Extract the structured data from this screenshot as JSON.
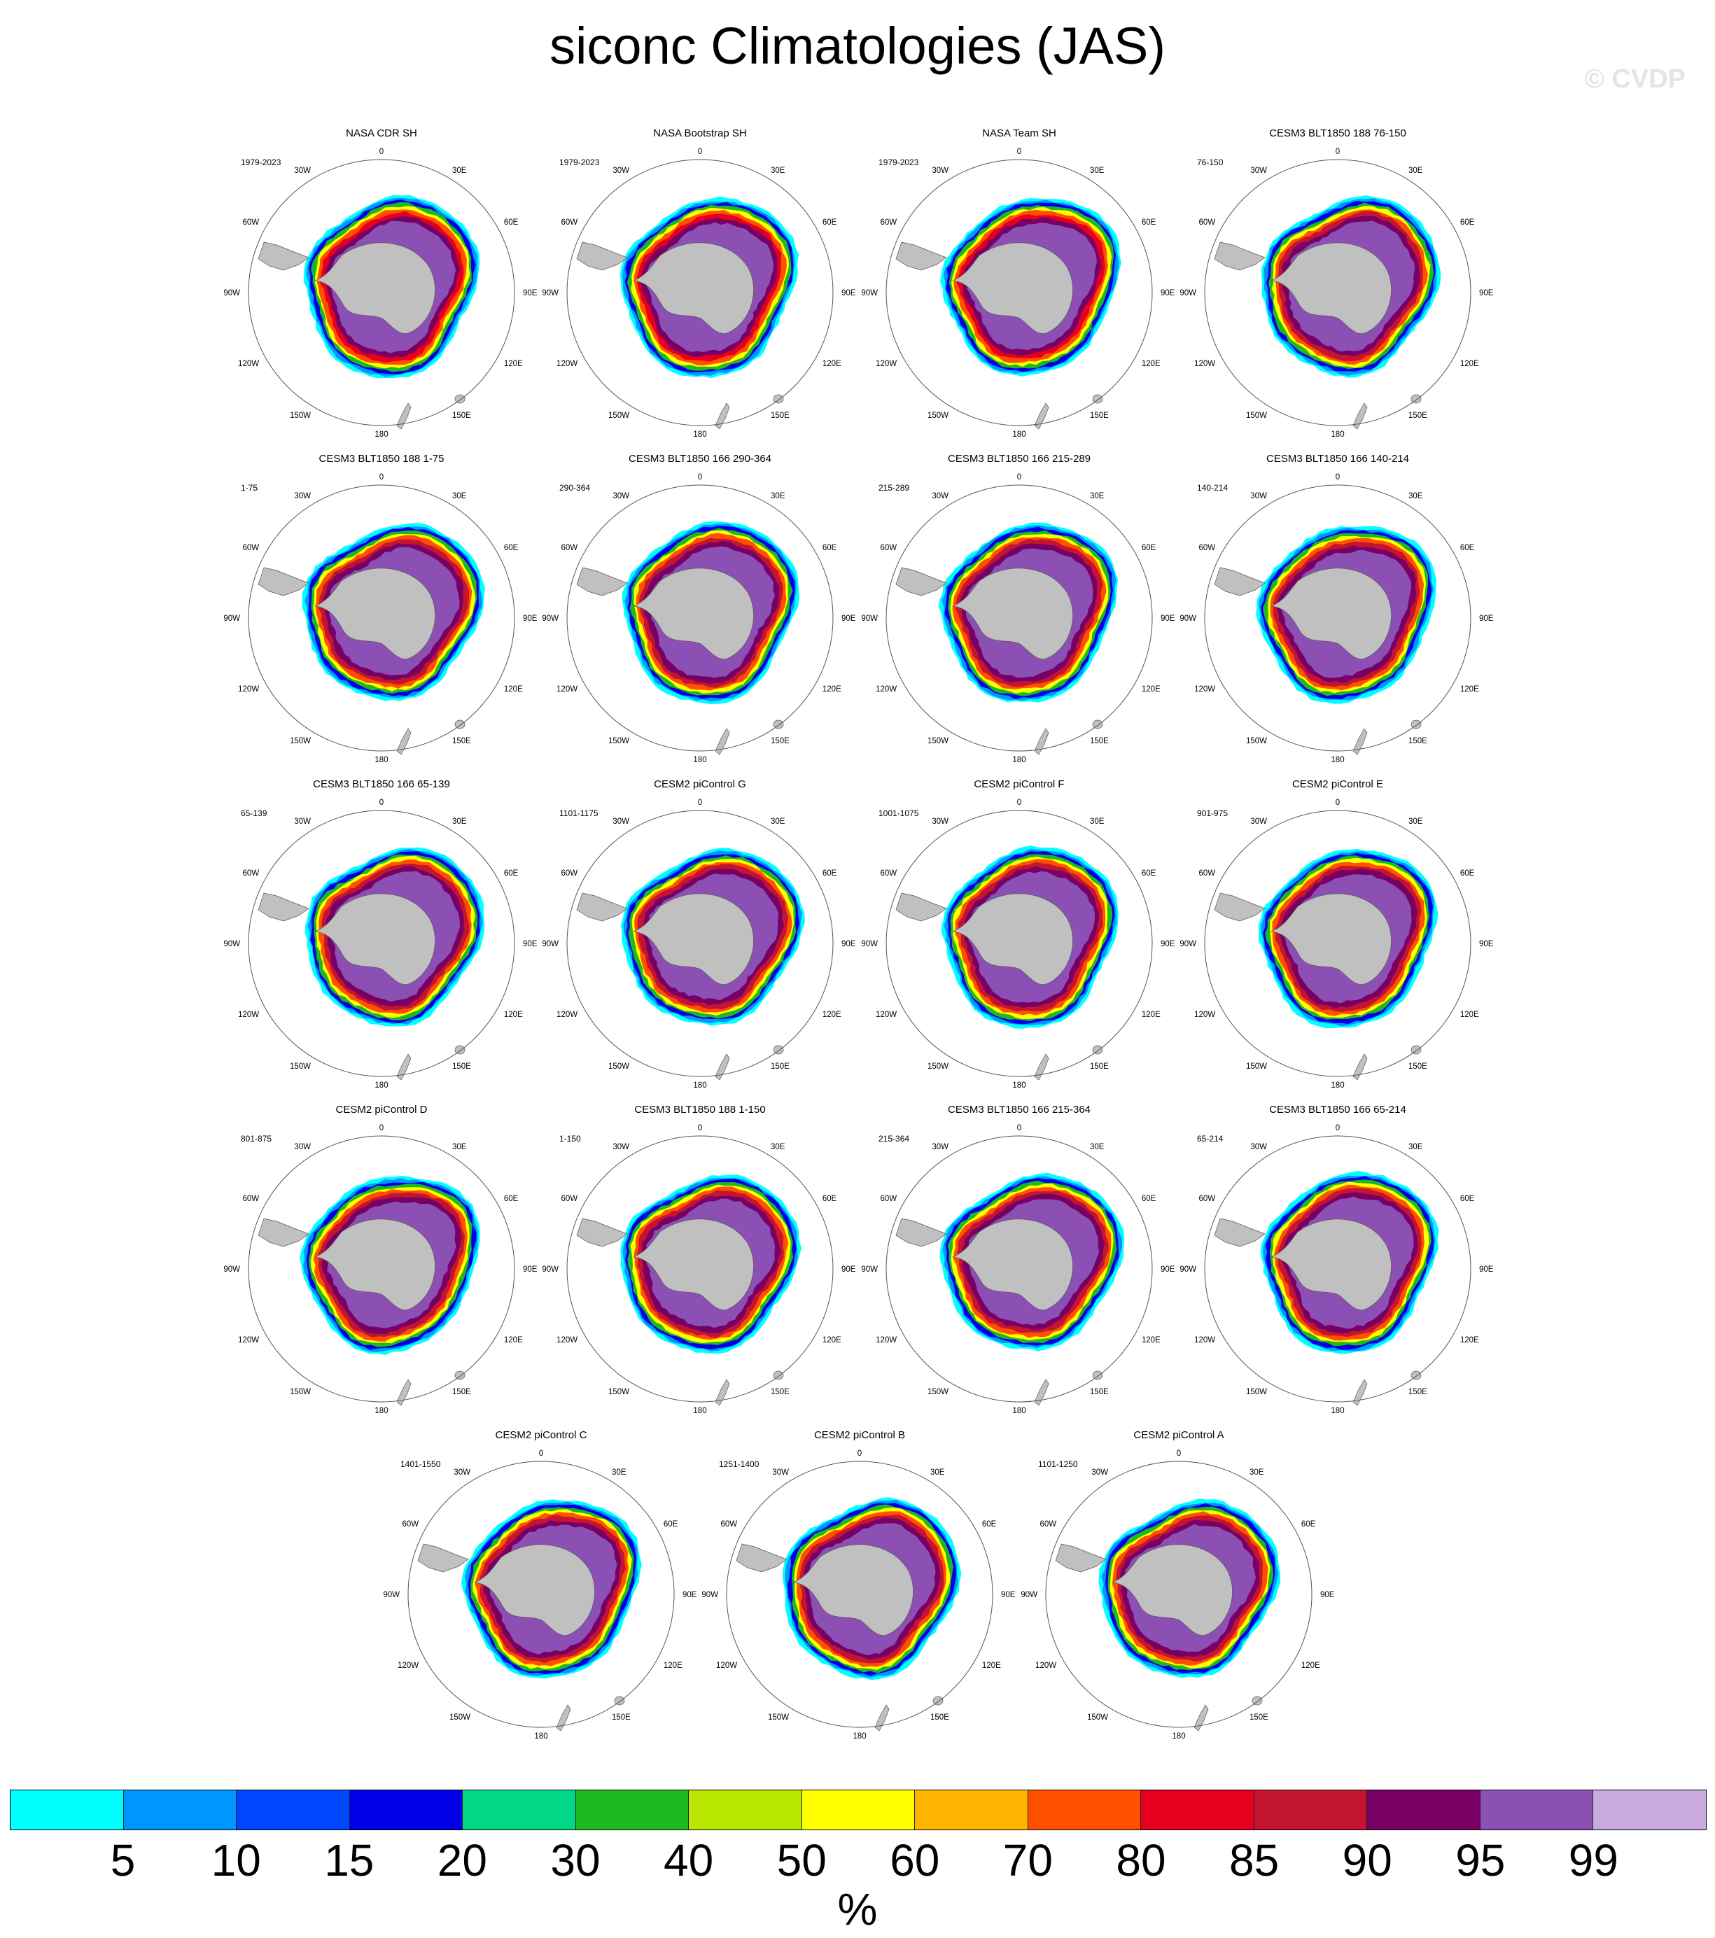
{
  "title": "siconc Climatologies (JAS)",
  "watermark": "© CVDP",
  "lon_labels": [
    "0",
    "30E",
    "60E",
    "90E",
    "120E",
    "150E",
    "180",
    "150W",
    "120W",
    "90W",
    "60W",
    "30W"
  ],
  "panels": [
    {
      "title": "NASA CDR SH",
      "period": "1979-2023"
    },
    {
      "title": "NASA Bootstrap SH",
      "period": "1979-2023"
    },
    {
      "title": "NASA Team SH",
      "period": "1979-2023"
    },
    {
      "title": "CESM3 BLT1850 188 76-150",
      "period": "76-150"
    },
    {
      "title": "CESM3 BLT1850 188 1-75",
      "period": "1-75"
    },
    {
      "title": "CESM3 BLT1850 166 290-364",
      "period": "290-364"
    },
    {
      "title": "CESM3 BLT1850 166 215-289",
      "period": "215-289"
    },
    {
      "title": "CESM3 BLT1850 166 140-214",
      "period": "140-214"
    },
    {
      "title": "CESM3 BLT1850 166 65-139",
      "period": "65-139"
    },
    {
      "title": "CESM2 piControl G",
      "period": "1101-1175"
    },
    {
      "title": "CESM2 piControl F",
      "period": "1001-1075"
    },
    {
      "title": "CESM2 piControl E",
      "period": "901-975"
    },
    {
      "title": "CESM2 piControl D",
      "period": "801-875"
    },
    {
      "title": "CESM3 BLT1850 188 1-150",
      "period": "1-150"
    },
    {
      "title": "CESM3 BLT1850 166 215-364",
      "period": "215-364"
    },
    {
      "title": "CESM3 BLT1850 166 65-214",
      "period": "65-214"
    },
    {
      "title": "CESM2 piControl C",
      "period": "1401-1550"
    },
    {
      "title": "CESM2 piControl B",
      "period": "1251-1400"
    },
    {
      "title": "CESM2 piControl A",
      "period": "1101-1250"
    }
  ],
  "colorbar": {
    "colors": [
      "#00ffff",
      "#0096ff",
      "#0046ff",
      "#0000e6",
      "#00d787",
      "#1eb91e",
      "#b9e600",
      "#ffff00",
      "#ffb400",
      "#ff5000",
      "#e6001e",
      "#c31432",
      "#780064",
      "#8c50b4",
      "#c8aadc"
    ],
    "ticks": [
      "5",
      "10",
      "15",
      "20",
      "30",
      "40",
      "50",
      "60",
      "70",
      "80",
      "85",
      "90",
      "95",
      "99"
    ],
    "unit": "%"
  }
}
